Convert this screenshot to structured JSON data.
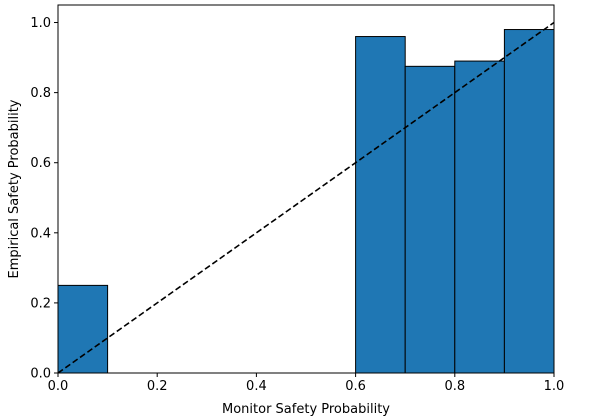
{
  "chart_data": {
    "type": "bar",
    "xlabel": "Monitor Safety Probability",
    "ylabel": "Empirical Safety Probability",
    "xlim": [
      0.0,
      1.0
    ],
    "ylim": [
      0.0,
      1.05
    ],
    "xticks": [
      "0.0",
      "0.2",
      "0.4",
      "0.6",
      "0.8",
      "1.0"
    ],
    "yticks": [
      "0.0",
      "0.2",
      "0.4",
      "0.6",
      "0.8",
      "1.0"
    ],
    "grid": false,
    "bar_color": "#1f77b4",
    "bar_edge_color": "#000000",
    "bins": [
      {
        "x0": 0.0,
        "x1": 0.1,
        "value": 0.25
      },
      {
        "x0": 0.6,
        "x1": 0.7,
        "value": 0.96
      },
      {
        "x0": 0.7,
        "x1": 0.8,
        "value": 0.875
      },
      {
        "x0": 0.8,
        "x1": 0.9,
        "value": 0.89
      },
      {
        "x0": 0.9,
        "x1": 1.0,
        "value": 0.98
      }
    ],
    "reference_line": {
      "style": "dashed",
      "color": "#000000",
      "from": [
        0.0,
        0.0
      ],
      "to": [
        1.0,
        1.0
      ]
    }
  }
}
